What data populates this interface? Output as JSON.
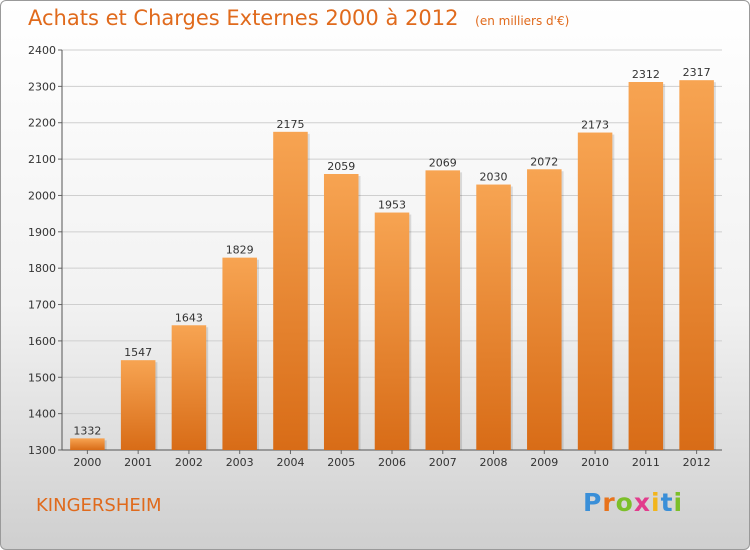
{
  "title": "Achats et Charges Externes 2000 à 2012",
  "unit": "(en milliers d'€)",
  "city": "KINGERSHEIM",
  "logo": {
    "text": "Proxiti",
    "letters": [
      {
        "ch": "P",
        "color": "#3a8fd8"
      },
      {
        "ch": "r",
        "color": "#e8731c"
      },
      {
        "ch": "o",
        "color": "#7cbf2a"
      },
      {
        "ch": "x",
        "color": "#e23c8c"
      },
      {
        "ch": "i",
        "color": "#f2b51c"
      },
      {
        "ch": "t",
        "color": "#3a8fd8"
      },
      {
        "ch": "i",
        "color": "#7cbf2a"
      }
    ]
  },
  "colors": {
    "bar_top": "#f7a452",
    "bar_bottom": "#d86c17",
    "accent": "#e06a1c"
  },
  "chart_data": {
    "type": "bar",
    "categories": [
      "2000",
      "2001",
      "2002",
      "2003",
      "2004",
      "2005",
      "2006",
      "2007",
      "2008",
      "2009",
      "2010",
      "2011",
      "2012"
    ],
    "values": [
      1332,
      1547,
      1643,
      1829,
      2175,
      2059,
      1953,
      2069,
      2030,
      2072,
      2173,
      2312,
      2317
    ],
    "ylim": [
      1300,
      2400
    ],
    "yticks": [
      1300,
      1400,
      1500,
      1600,
      1700,
      1800,
      1900,
      2000,
      2100,
      2200,
      2300,
      2400
    ],
    "grid": true
  }
}
